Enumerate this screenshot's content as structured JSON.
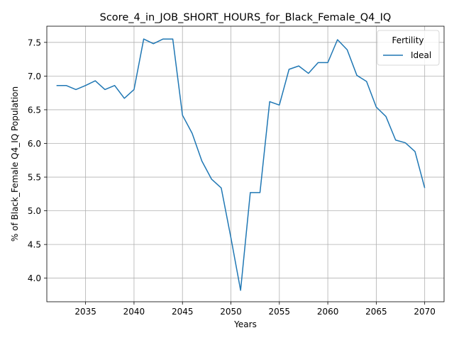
{
  "chart_data": {
    "type": "line",
    "title": "Score_4_in_JOB_SHORT_HOURS_for_Black_Female_Q4_IQ",
    "xlabel": "Years",
    "ylabel": "% of Black_Female Q4_IQ Population",
    "xlim": [
      2031,
      2072
    ],
    "ylim": [
      3.65,
      7.74
    ],
    "xticks": [
      2035,
      2040,
      2045,
      2050,
      2055,
      2060,
      2065,
      2070
    ],
    "yticks": [
      4.0,
      4.5,
      5.0,
      5.5,
      6.0,
      6.5,
      7.0,
      7.5
    ],
    "grid": true,
    "legend": {
      "title": "Fertility",
      "placement": "top-right"
    },
    "series": [
      {
        "name": "Ideal",
        "color": "#1f77b4",
        "x": [
          2032,
          2033,
          2034,
          2035,
          2036,
          2037,
          2038,
          2039,
          2040,
          2041,
          2042,
          2043,
          2044,
          2045,
          2046,
          2047,
          2048,
          2049,
          2050,
          2051,
          2052,
          2053,
          2054,
          2055,
          2056,
          2057,
          2058,
          2059,
          2060,
          2061,
          2062,
          2063,
          2064,
          2065,
          2066,
          2067,
          2068,
          2069,
          2070
        ],
        "values": [
          6.86,
          6.86,
          6.8,
          6.86,
          6.93,
          6.8,
          6.86,
          6.67,
          6.8,
          7.55,
          7.48,
          7.55,
          7.55,
          6.42,
          6.15,
          5.74,
          5.47,
          5.34,
          4.6,
          3.82,
          5.27,
          5.27,
          6.62,
          6.57,
          7.1,
          7.15,
          7.04,
          7.2,
          7.2,
          7.54,
          7.39,
          7.01,
          6.92,
          6.54,
          6.4,
          6.05,
          6.01,
          5.88,
          5.34
        ]
      }
    ]
  }
}
